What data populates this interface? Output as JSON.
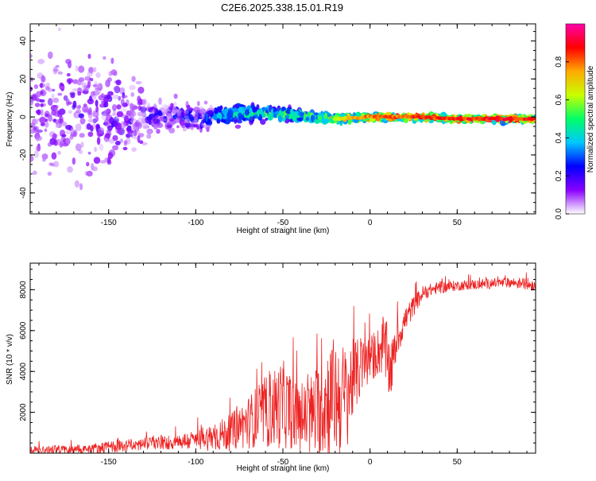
{
  "title": "C2E6.2025.338.15.01.R19",
  "chart_data": [
    {
      "type": "heatmap",
      "xlabel": "Height of straight line (km)",
      "ylabel": "Frequency (Hz)",
      "xlim": [
        -195,
        95
      ],
      "ylim": [
        -51,
        49
      ],
      "xticks": [
        -150,
        -100,
        -50,
        0,
        50
      ],
      "yticks": [
        -40,
        -20,
        0,
        20,
        40
      ],
      "colorbar": {
        "label": "Normalized spectral amplitude",
        "range": [
          0.0,
          1.0
        ],
        "ticks": [
          "0.0",
          "0.2",
          "0.4",
          "0.6",
          "0.8"
        ],
        "colors": [
          "#ffffff",
          "#8a00ff",
          "#0000ff",
          "#00c8ff",
          "#00ff66",
          "#c8ff00",
          "#ffaa00",
          "#ff0000",
          "#ff00aa"
        ]
      },
      "ridge": {
        "description_points_x": [
          -195,
          -150,
          -125,
          -100,
          -85,
          -60,
          -35,
          -20,
          0,
          25,
          50,
          75,
          95
        ],
        "center_freq": [
          0,
          1,
          1,
          0,
          1,
          2,
          0,
          -1,
          0,
          0,
          -1,
          -1,
          -1
        ],
        "bandwidth": [
          48,
          48,
          12,
          10,
          7,
          5,
          4,
          3,
          2,
          2,
          2,
          2,
          2
        ],
        "peak_amplitude": [
          0.15,
          0.18,
          0.2,
          0.3,
          0.4,
          0.5,
          0.55,
          0.7,
          0.85,
          0.9,
          0.92,
          0.95,
          0.9
        ]
      }
    },
    {
      "type": "line",
      "xlabel": "Height of straight line (km)",
      "ylabel": "SNR (10 * v/v)",
      "xlim": [
        -195,
        95
      ],
      "ylim": [
        0,
        9300
      ],
      "xticks": [
        -150,
        -100,
        -50,
        0,
        50
      ],
      "yticks": [
        2000,
        4000,
        6000,
        8000
      ],
      "series": [
        {
          "name": "SNR",
          "color": "#ee2222",
          "x": [
            -195,
            -180,
            -160,
            -150,
            -140,
            -130,
            -120,
            -110,
            -100,
            -90,
            -80,
            -75,
            -70,
            -65,
            -60,
            -55,
            -50,
            -45,
            -40,
            -35,
            -30,
            -25,
            -20,
            -15,
            -12,
            -10,
            -5,
            0,
            5,
            8,
            10,
            12,
            15,
            20,
            25,
            30,
            35,
            40,
            50,
            60,
            70,
            80,
            90,
            95
          ],
          "values": [
            150,
            180,
            220,
            300,
            380,
            430,
            500,
            560,
            650,
            800,
            1000,
            1300,
            1500,
            1800,
            2000,
            2200,
            2400,
            2000,
            1600,
            1800,
            2000,
            2600,
            2800,
            2600,
            3200,
            3600,
            4200,
            4600,
            5000,
            5300,
            4500,
            4000,
            5400,
            6500,
            7200,
            7800,
            8000,
            8100,
            8200,
            8250,
            8300,
            8350,
            8300,
            8200
          ],
          "spread": [
            200,
            200,
            250,
            300,
            300,
            320,
            350,
            400,
            500,
            700,
            900,
            1100,
            1300,
            1500,
            1800,
            2000,
            2200,
            1800,
            1500,
            2000,
            2400,
            2800,
            3000,
            2800,
            2600,
            2000,
            1400,
            1200,
            1200,
            1500,
            1800,
            1400,
            900,
            700,
            500,
            400,
            300,
            300,
            250,
            250,
            250,
            250,
            300,
            300
          ]
        }
      ]
    }
  ]
}
